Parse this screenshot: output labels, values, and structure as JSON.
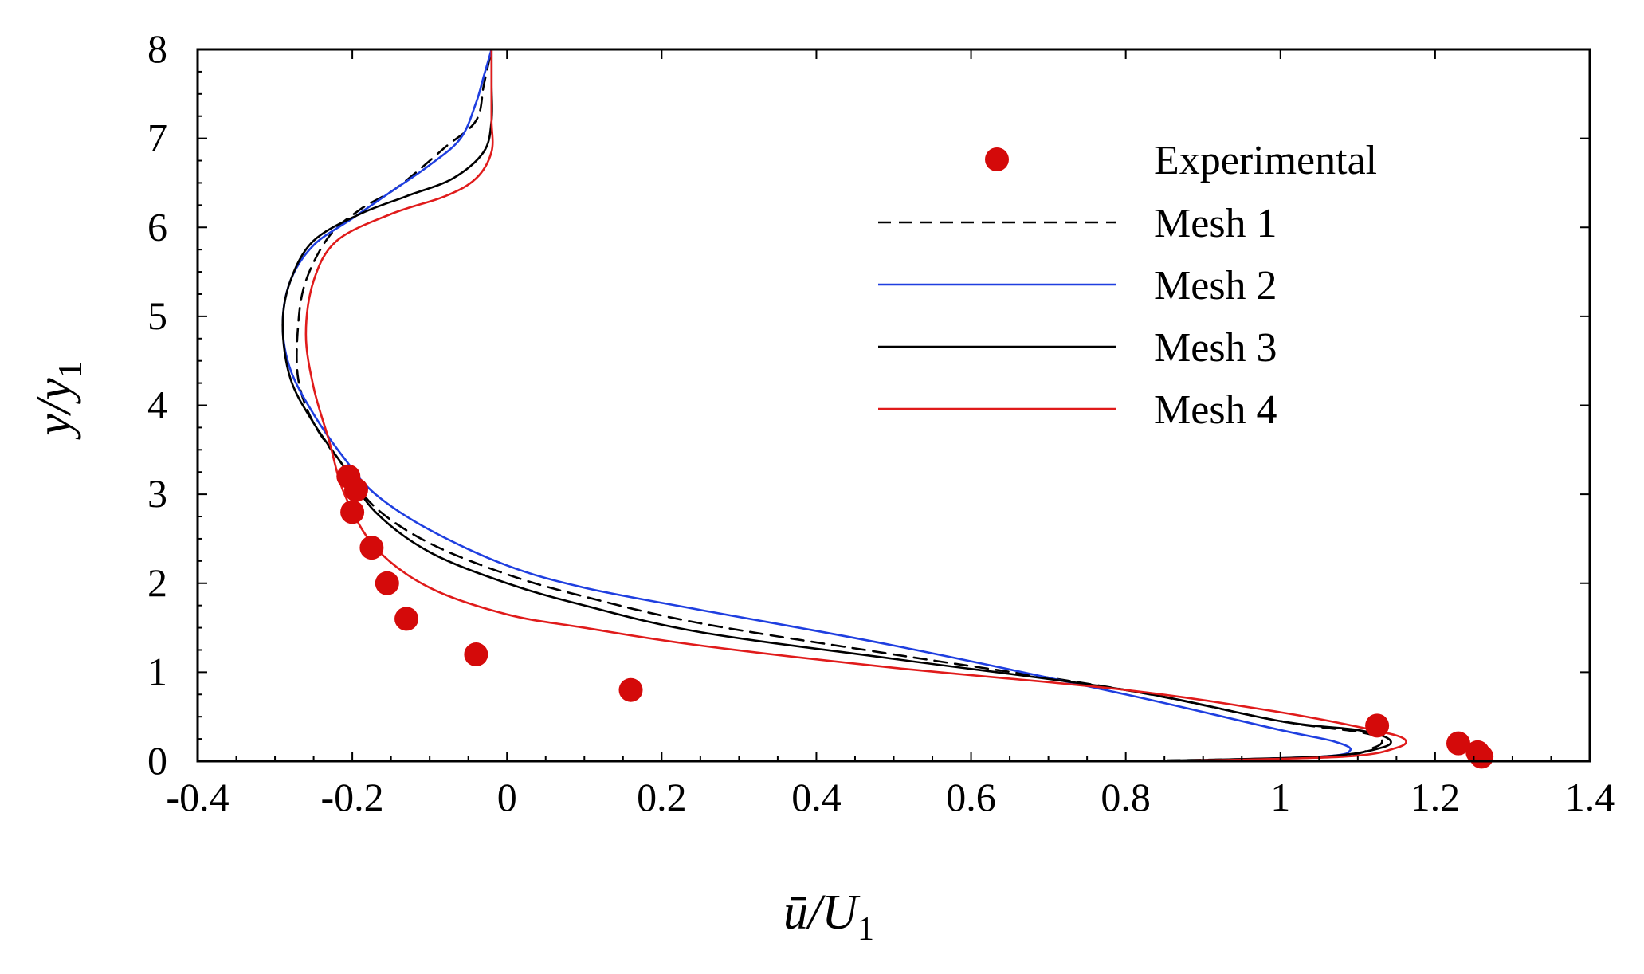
{
  "chart_data": {
    "type": "line",
    "title": "",
    "xlabel": "ū/U",
    "xlabel_subscript": "1",
    "ylabel": "y/y",
    "ylabel_subscript": "1",
    "xlim": [
      -0.4,
      1.4
    ],
    "ylim": [
      0,
      8
    ],
    "xticks": [
      "-0.4",
      "-0.2",
      "0",
      "0.2",
      "0.4",
      "0.6",
      "0.8",
      "1",
      "1.2",
      "1.4"
    ],
    "yticks": [
      "0",
      "1",
      "2",
      "3",
      "4",
      "5",
      "6",
      "7",
      "8"
    ],
    "grid": false,
    "legend_position": "top-right",
    "series": [
      {
        "name": "Mesh 1",
        "style": "dashed",
        "color": "#000000",
        "points": [
          [
            0.8,
            0.0
          ],
          [
            1.06,
            0.05
          ],
          [
            1.12,
            0.15
          ],
          [
            1.13,
            0.25
          ],
          [
            1.1,
            0.33
          ],
          [
            1.0,
            0.45
          ],
          [
            0.8,
            0.8
          ],
          [
            0.5,
            1.2
          ],
          [
            0.25,
            1.55
          ],
          [
            0.1,
            1.85
          ],
          [
            0.0,
            2.1
          ],
          [
            -0.1,
            2.45
          ],
          [
            -0.17,
            2.85
          ],
          [
            -0.21,
            3.3
          ],
          [
            -0.25,
            3.8
          ],
          [
            -0.27,
            4.3
          ],
          [
            -0.27,
            4.9
          ],
          [
            -0.26,
            5.4
          ],
          [
            -0.23,
            5.9
          ],
          [
            -0.19,
            6.2
          ],
          [
            -0.15,
            6.4
          ],
          [
            -0.12,
            6.6
          ],
          [
            -0.08,
            6.9
          ],
          [
            -0.04,
            7.2
          ],
          [
            -0.03,
            7.6
          ],
          [
            -0.02,
            8.0
          ]
        ]
      },
      {
        "name": "Mesh 2",
        "style": "solid",
        "color": "#1f3fe0",
        "points": [
          [
            0.85,
            0.0
          ],
          [
            1.05,
            0.05
          ],
          [
            1.09,
            0.12
          ],
          [
            1.07,
            0.22
          ],
          [
            1.0,
            0.35
          ],
          [
            0.8,
            0.75
          ],
          [
            0.5,
            1.3
          ],
          [
            0.25,
            1.7
          ],
          [
            0.1,
            1.95
          ],
          [
            0.0,
            2.2
          ],
          [
            -0.1,
            2.6
          ],
          [
            -0.17,
            3.0
          ],
          [
            -0.21,
            3.4
          ],
          [
            -0.25,
            3.9
          ],
          [
            -0.28,
            4.4
          ],
          [
            -0.29,
            4.9
          ],
          [
            -0.28,
            5.4
          ],
          [
            -0.25,
            5.8
          ],
          [
            -0.2,
            6.1
          ],
          [
            -0.15,
            6.4
          ],
          [
            -0.1,
            6.7
          ],
          [
            -0.06,
            7.0
          ],
          [
            -0.04,
            7.4
          ],
          [
            -0.03,
            7.7
          ],
          [
            -0.02,
            8.0
          ]
        ]
      },
      {
        "name": "Mesh 3",
        "style": "solid",
        "color": "#000000",
        "points": [
          [
            0.82,
            0.0
          ],
          [
            1.05,
            0.05
          ],
          [
            1.13,
            0.15
          ],
          [
            1.14,
            0.25
          ],
          [
            1.1,
            0.35
          ],
          [
            1.0,
            0.45
          ],
          [
            0.8,
            0.8
          ],
          [
            0.5,
            1.15
          ],
          [
            0.25,
            1.45
          ],
          [
            0.1,
            1.75
          ],
          [
            0.0,
            2.0
          ],
          [
            -0.1,
            2.35
          ],
          [
            -0.17,
            2.8
          ],
          [
            -0.21,
            3.3
          ],
          [
            -0.25,
            3.8
          ],
          [
            -0.28,
            4.3
          ],
          [
            -0.29,
            4.9
          ],
          [
            -0.28,
            5.4
          ],
          [
            -0.25,
            5.85
          ],
          [
            -0.19,
            6.15
          ],
          [
            -0.13,
            6.35
          ],
          [
            -0.07,
            6.55
          ],
          [
            -0.03,
            6.85
          ],
          [
            -0.02,
            7.2
          ],
          [
            -0.02,
            7.6
          ],
          [
            -0.02,
            8.0
          ]
        ]
      },
      {
        "name": "Mesh 4",
        "style": "solid",
        "color": "#e01b1b",
        "points": [
          [
            0.85,
            0.0
          ],
          [
            1.08,
            0.05
          ],
          [
            1.15,
            0.15
          ],
          [
            1.16,
            0.25
          ],
          [
            1.12,
            0.35
          ],
          [
            1.0,
            0.55
          ],
          [
            0.8,
            0.8
          ],
          [
            0.5,
            1.05
          ],
          [
            0.25,
            1.3
          ],
          [
            0.1,
            1.5
          ],
          [
            0.0,
            1.65
          ],
          [
            -0.1,
            1.95
          ],
          [
            -0.17,
            2.4
          ],
          [
            -0.21,
            3.0
          ],
          [
            -0.23,
            3.6
          ],
          [
            -0.25,
            4.2
          ],
          [
            -0.26,
            4.8
          ],
          [
            -0.25,
            5.4
          ],
          [
            -0.22,
            5.85
          ],
          [
            -0.15,
            6.15
          ],
          [
            -0.08,
            6.35
          ],
          [
            -0.04,
            6.55
          ],
          [
            -0.02,
            6.85
          ],
          [
            -0.02,
            7.2
          ],
          [
            -0.02,
            7.6
          ],
          [
            -0.02,
            8.0
          ]
        ]
      }
    ],
    "experimental": {
      "name": "Experimental",
      "marker": "circle",
      "color": "#d40a0a",
      "points": [
        [
          -0.205,
          3.2
        ],
        [
          -0.195,
          3.05
        ],
        [
          -0.2,
          2.8
        ],
        [
          -0.175,
          2.4
        ],
        [
          -0.155,
          2.0
        ],
        [
          -0.13,
          1.6
        ],
        [
          -0.04,
          1.2
        ],
        [
          0.16,
          0.8
        ],
        [
          1.125,
          0.4
        ],
        [
          1.23,
          0.2
        ],
        [
          1.255,
          0.1
        ],
        [
          1.26,
          0.05
        ]
      ]
    },
    "legend": [
      "Experimental",
      "Mesh 1",
      "Mesh 2",
      "Mesh 3",
      "Mesh 4"
    ]
  }
}
